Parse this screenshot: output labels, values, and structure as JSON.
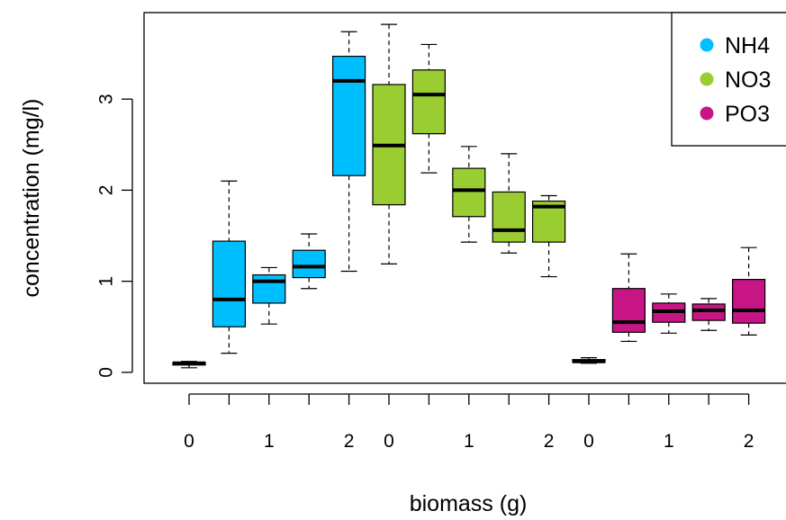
{
  "chart_data": {
    "type": "boxplot",
    "xlabel": "biomass (g)",
    "ylabel": "concentration (mg/l)",
    "ylim": [
      -0.12,
      3.95
    ],
    "y_ticks": [
      0,
      1,
      2,
      3
    ],
    "x_tick_labels": [
      "0",
      "1",
      "2",
      "0",
      "1",
      "2",
      "0",
      "1",
      "2"
    ],
    "x_tick_label_positions": [
      1,
      3,
      5,
      6,
      8,
      10,
      11,
      13,
      15
    ],
    "legend": {
      "position": "top-right",
      "entries": [
        "NH4",
        "NO3",
        "PO3"
      ]
    },
    "colors": {
      "NH4": "#00bfff",
      "NO3": "#9acd32",
      "PO3": "#c71585"
    },
    "series": [
      {
        "name": "NH4",
        "boxes": [
          {
            "pos": 1,
            "min": 0.05,
            "q1": 0.08,
            "median": 0.1,
            "q3": 0.11,
            "max": 0.12
          },
          {
            "pos": 2,
            "min": 0.21,
            "q1": 0.5,
            "median": 0.8,
            "q3": 1.44,
            "max": 2.1
          },
          {
            "pos": 3,
            "min": 0.53,
            "q1": 0.76,
            "median": 1.0,
            "q3": 1.07,
            "max": 1.15
          },
          {
            "pos": 4,
            "min": 0.92,
            "q1": 1.04,
            "median": 1.16,
            "q3": 1.34,
            "max": 1.52
          },
          {
            "pos": 5,
            "min": 1.11,
            "q1": 2.16,
            "median": 3.2,
            "q3": 3.47,
            "max": 3.74
          }
        ]
      },
      {
        "name": "NO3",
        "boxes": [
          {
            "pos": 6,
            "min": 1.19,
            "q1": 1.84,
            "median": 2.49,
            "q3": 3.16,
            "max": 3.82
          },
          {
            "pos": 7,
            "min": 2.19,
            "q1": 2.62,
            "median": 3.05,
            "q3": 3.32,
            "max": 3.6
          },
          {
            "pos": 8,
            "min": 1.43,
            "q1": 1.71,
            "median": 2.0,
            "q3": 2.24,
            "max": 2.48
          },
          {
            "pos": 9,
            "min": 1.31,
            "q1": 1.43,
            "median": 1.56,
            "q3": 1.98,
            "max": 2.4
          },
          {
            "pos": 10,
            "min": 1.05,
            "q1": 1.43,
            "median": 1.82,
            "q3": 1.88,
            "max": 1.94
          }
        ]
      },
      {
        "name": "PO3",
        "boxes": [
          {
            "pos": 11,
            "min": 0.1,
            "q1": 0.11,
            "median": 0.12,
            "q3": 0.14,
            "max": 0.16
          },
          {
            "pos": 12,
            "min": 0.34,
            "q1": 0.44,
            "median": 0.55,
            "q3": 0.92,
            "max": 1.3
          },
          {
            "pos": 13,
            "min": 0.43,
            "q1": 0.55,
            "median": 0.67,
            "q3": 0.76,
            "max": 0.86
          },
          {
            "pos": 14,
            "min": 0.46,
            "q1": 0.57,
            "median": 0.68,
            "q3": 0.75,
            "max": 0.81
          },
          {
            "pos": 15,
            "min": 0.41,
            "q1": 0.54,
            "median": 0.68,
            "q3": 1.02,
            "max": 1.37
          }
        ]
      }
    ]
  }
}
